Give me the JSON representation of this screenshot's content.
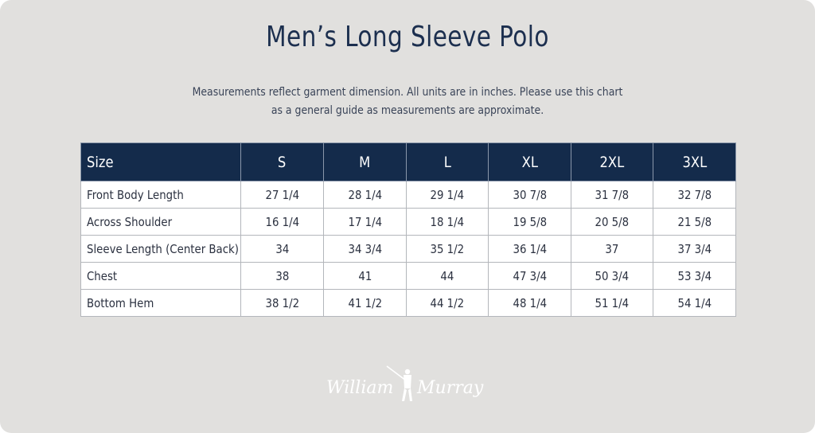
{
  "title": "Men’s Long Sleeve Polo",
  "note_line1": "Measurements reflect garment dimension. All units are in inches. Please use this chart",
  "note_line2": "as a general guide as measurements are approximate.",
  "table": {
    "header": [
      "Size",
      "S",
      "M",
      "L",
      "XL",
      "2XL",
      "3XL"
    ],
    "rows": [
      {
        "label": "Front Body Length",
        "values": [
          "27 1/4",
          "28 1/4",
          "29 1/4",
          "30 7/8",
          "31 7/8",
          "32 7/8"
        ]
      },
      {
        "label": "Across Shoulder",
        "values": [
          "16 1/4",
          "17 1/4",
          "18 1/4",
          "19 5/8",
          "20 5/8",
          "21 5/8"
        ]
      },
      {
        "label": "Sleeve Length (Center Back)",
        "values": [
          "34",
          "34 3/4",
          "35 1/2",
          "36 1/4",
          "37",
          "37 3/4"
        ]
      },
      {
        "label": "Chest",
        "values": [
          "38",
          "41",
          "44",
          "47 3/4",
          "50 3/4",
          "53 3/4"
        ]
      },
      {
        "label": "Bottom Hem",
        "values": [
          "38 1/2",
          "41 1/2",
          "44 1/2",
          "48 1/4",
          "51 1/4",
          "54 1/4"
        ]
      }
    ]
  },
  "logo": {
    "text": "William Murray",
    "color": "#ffffff"
  },
  "colors": {
    "background": "#e1e0de",
    "header": "#142b4b",
    "title": "#1c2f4f"
  }
}
